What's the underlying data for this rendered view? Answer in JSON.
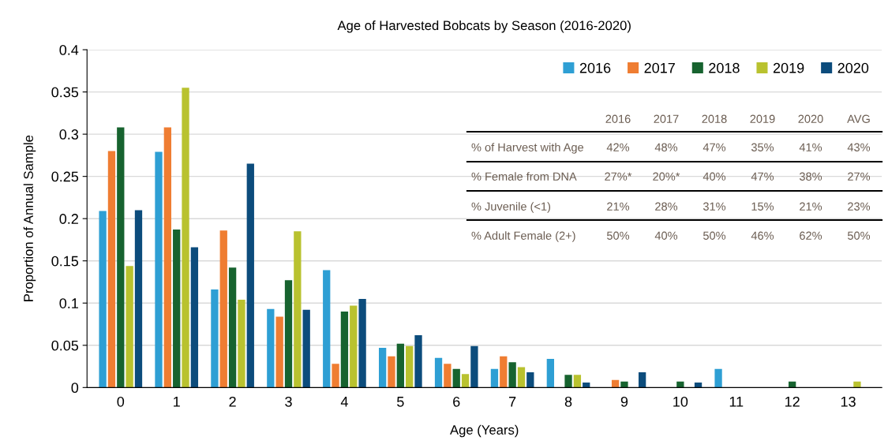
{
  "chart_data": {
    "type": "bar",
    "title": "Age of Harvested Bobcats by Season (2016-2020)",
    "xlabel": "Age (Years)",
    "ylabel": "Proportion of Annual Sample",
    "categories": [
      "0",
      "1",
      "2",
      "3",
      "4",
      "5",
      "6",
      "7",
      "8",
      "9",
      "10",
      "11",
      "12",
      "13"
    ],
    "series": [
      {
        "name": "2016",
        "color": "#2e9fd4",
        "values": [
          0.209,
          0.279,
          0.116,
          0.093,
          0.139,
          0.047,
          0.035,
          0.022,
          0.034,
          0,
          0,
          0.022,
          0,
          0
        ]
      },
      {
        "name": "2017",
        "color": "#ef7d32",
        "values": [
          0.28,
          0.308,
          0.186,
          0.084,
          0.028,
          0.037,
          0.028,
          0.037,
          0,
          0.009,
          0,
          0,
          0,
          0
        ]
      },
      {
        "name": "2018",
        "color": "#17632f",
        "values": [
          0.308,
          0.187,
          0.142,
          0.127,
          0.09,
          0.052,
          0.022,
          0.03,
          0.015,
          0.007,
          0.007,
          0,
          0.007,
          0
        ]
      },
      {
        "name": "2019",
        "color": "#b9c22f",
        "values": [
          0.144,
          0.355,
          0.104,
          0.185,
          0.097,
          0.049,
          0.016,
          0.024,
          0.015,
          0,
          0,
          0,
          0,
          0.007
        ]
      },
      {
        "name": "2020",
        "color": "#0c4c7c",
        "values": [
          0.21,
          0.166,
          0.265,
          0.092,
          0.105,
          0.062,
          0.049,
          0.018,
          0.006,
          0.018,
          0.006,
          0,
          0,
          0
        ]
      }
    ],
    "ylim": [
      0,
      0.4
    ],
    "yticks": [
      0,
      0.05,
      0.1,
      0.15,
      0.2,
      0.25,
      0.3,
      0.35,
      0.4
    ],
    "grid": "y",
    "legend": "top right",
    "annotations": [
      "2016",
      "2017",
      "2018",
      "2019",
      "2020",
      "AVG",
      "% of Harvest with Age",
      "42%",
      "48%",
      "47%",
      "35%",
      "41%",
      "43%",
      "% Female from DNA",
      "27%*",
      "20%*",
      "40%",
      "47%",
      "38%",
      "27%",
      "% Juvenile (<1)",
      "21%",
      "28%",
      "31%",
      "15%",
      "21%",
      "23%",
      "% Adult Female (2+)",
      "50%",
      "40%",
      "50%",
      "46%",
      "62%",
      "50%"
    ]
  }
}
